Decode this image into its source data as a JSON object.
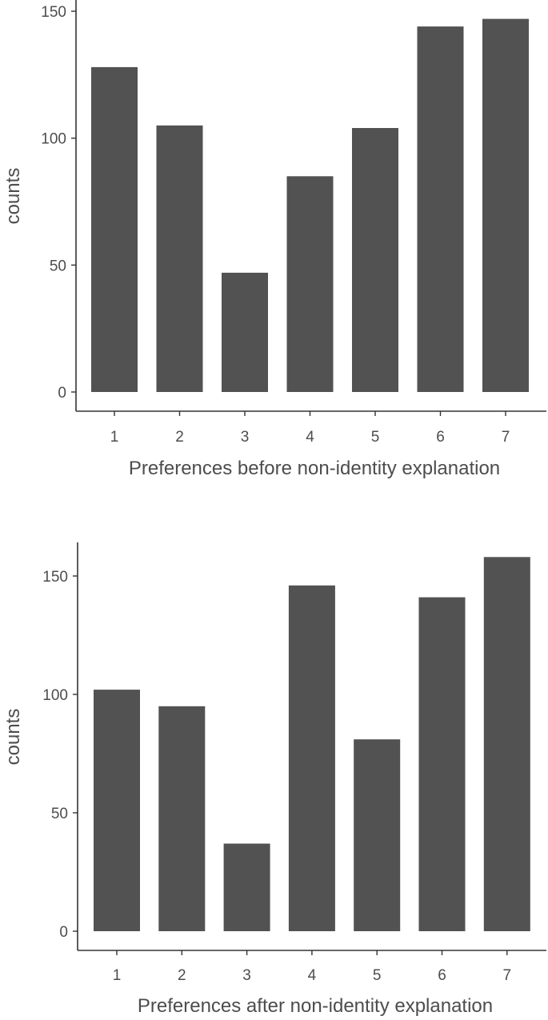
{
  "chart_data": [
    {
      "type": "bar",
      "categories": [
        "1",
        "2",
        "3",
        "4",
        "5",
        "6",
        "7"
      ],
      "values": [
        128,
        105,
        47,
        85,
        104,
        144,
        147
      ],
      "xlabel": "Preferences before non-identity explanation",
      "ylabel": "counts",
      "ylim": [
        0,
        150
      ],
      "yticks": [
        0,
        50,
        100,
        150
      ],
      "bar_color": "#525252",
      "grid": false
    },
    {
      "type": "bar",
      "categories": [
        "1",
        "2",
        "3",
        "4",
        "5",
        "6",
        "7"
      ],
      "values": [
        102,
        95,
        37,
        146,
        81,
        141,
        158
      ],
      "xlabel": "Preferences after non-identity explanation",
      "ylabel": "counts",
      "ylim": [
        0,
        150
      ],
      "yticks": [
        0,
        50,
        100,
        150
      ],
      "bar_color": "#525252",
      "grid": false
    }
  ]
}
